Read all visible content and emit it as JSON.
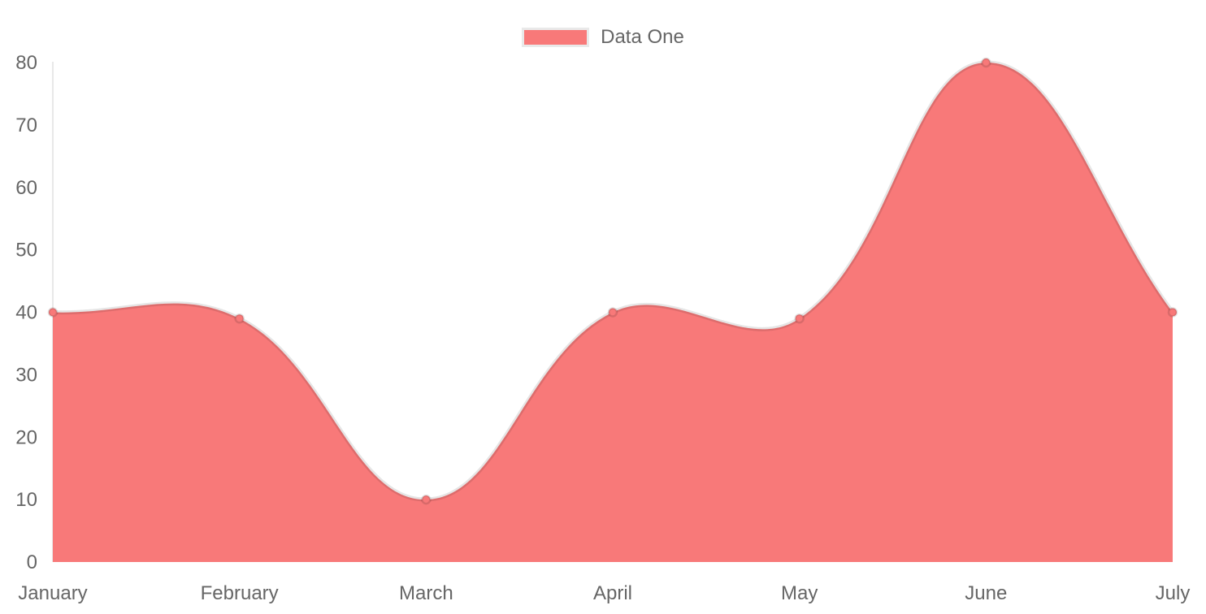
{
  "chart_data": {
    "type": "area",
    "title": "",
    "categories": [
      "January",
      "February",
      "March",
      "April",
      "May",
      "June",
      "July"
    ],
    "series": [
      {
        "name": "Data One",
        "values": [
          40,
          39,
          10,
          40,
          39,
          80,
          40
        ]
      }
    ],
    "xlabel": "",
    "ylabel": "",
    "ylim": [
      0,
      80
    ],
    "yticks": [
      0,
      10,
      20,
      30,
      40,
      50,
      60,
      70,
      80
    ],
    "grid": false,
    "line_tension": 0.4,
    "legend": {
      "position": "top",
      "entries": [
        {
          "label": "Data One",
          "box_color": "#f87979",
          "box_border_color": "#e9e9e9"
        }
      ]
    },
    "colors": {
      "area_fill": "#f87979",
      "line_stroke": "rgba(0,0,0,0.1)",
      "point_fill": "#f87979",
      "point_border": "rgba(0,0,0,0.12)",
      "axis_line": "rgba(0,0,0,0.09)",
      "tick_text": "#666666"
    }
  }
}
